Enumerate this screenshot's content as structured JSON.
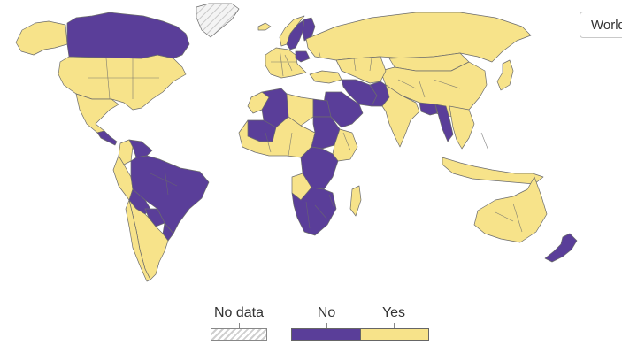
{
  "map": {
    "type": "choropleth",
    "categories": [
      "No data",
      "No",
      "Yes"
    ],
    "colors": {
      "No": "#5a3e99",
      "Yes": "#f7e38a",
      "No data": "#e6e6e6"
    },
    "country_values": {
      "Canada": "No",
      "Greenland": "No data",
      "United States": "Yes",
      "Alaska": "Yes",
      "Mexico": "Yes",
      "Central America": "No",
      "Venezuela": "No",
      "Colombia": "Yes",
      "Brazil": "No",
      "Peru": "Yes",
      "Bolivia": "No",
      "Paraguay": "No",
      "Uruguay": "No",
      "Argentina": "Yes",
      "Chile": "Yes",
      "Iceland": "Yes",
      "Norway": "Yes",
      "Sweden": "No",
      "Finland": "No",
      "Western Europe": "Yes",
      "Poland": "No",
      "Russia": "Yes",
      "Turkey": "Yes",
      "Morocco": "Yes",
      "Algeria": "No",
      "Libya": "Yes",
      "Egypt": "No",
      "Sudan": "No",
      "Sahel": "Yes",
      "Mali": "No",
      "Ethiopia": "Yes",
      "DR Congo": "No",
      "Angola": "Yes",
      "Southern Africa": "No",
      "Madagascar": "Yes",
      "Saudi Arabia": "No",
      "Iran": "No",
      "Central Asia": "Yes",
      "Pakistan": "No",
      "India": "Yes",
      "Bangladesh": "No",
      "Myanmar": "No",
      "China": "Yes",
      "Mongolia": "Yes",
      "Japan": "Yes",
      "Southeast Asia": "Yes",
      "Indonesia": "Yes",
      "Australia": "Yes",
      "New Zealand": "No"
    }
  },
  "controls": {
    "region_dropdown_value": "World"
  },
  "legend": {
    "nodata_label": "No data",
    "no_label": "No",
    "yes_label": "Yes"
  }
}
